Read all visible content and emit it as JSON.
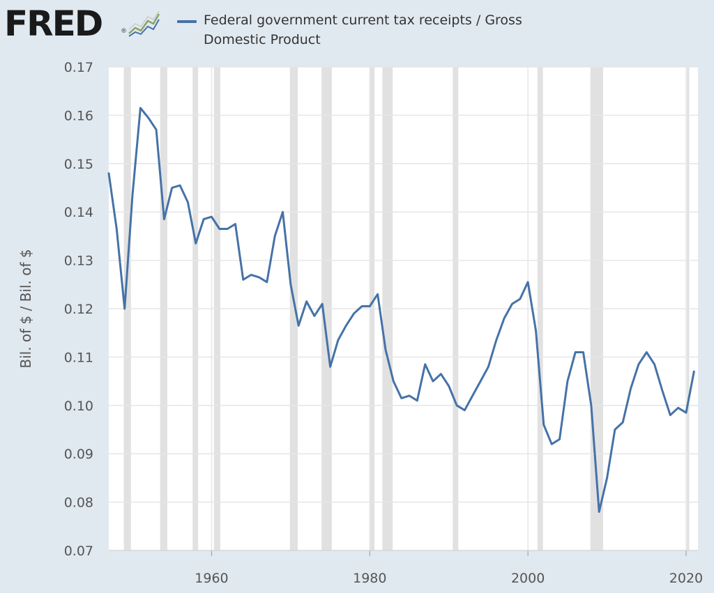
{
  "logo": {
    "text": "FRED",
    "mark": "®",
    "graph_icon": "line-graph-icon"
  },
  "legend": {
    "label": "Federal government current tax receipts / Gross Domestic Product",
    "color": "#4572a7"
  },
  "chart_data": {
    "type": "line",
    "title": "",
    "xlabel": "",
    "ylabel": "Bil. of $ / Bil. of $",
    "xlim": [
      1947,
      2021.5
    ],
    "ylim": [
      0.07,
      0.17
    ],
    "x_ticks": [
      1960,
      1980,
      2000,
      2020
    ],
    "y_ticks": [
      0.07,
      0.08,
      0.09,
      0.1,
      0.11,
      0.12,
      0.13,
      0.14,
      0.15,
      0.16,
      0.17
    ],
    "y_tick_labels": [
      "0.07",
      "0.08",
      "0.09",
      "0.10",
      "0.11",
      "0.12",
      "0.13",
      "0.14",
      "0.15",
      "0.16",
      "0.17"
    ],
    "grid": true,
    "background_color": "#ffffff",
    "grid_color": "#e6e6e6",
    "recession_color": "#e1e1e1",
    "recessions": [
      [
        1948.9,
        1949.8
      ],
      [
        1953.5,
        1954.4
      ],
      [
        1957.6,
        1958.3
      ],
      [
        1960.3,
        1961.1
      ],
      [
        1969.9,
        1970.9
      ],
      [
        1973.9,
        1975.2
      ],
      [
        1980.0,
        1980.6
      ],
      [
        1981.6,
        1982.9
      ],
      [
        1990.5,
        1991.2
      ],
      [
        2001.2,
        2001.9
      ],
      [
        2007.9,
        2009.5
      ],
      [
        2020.1,
        2020.4
      ]
    ],
    "series": [
      {
        "name": "Federal government current tax receipts / Gross Domestic Product",
        "color": "#4572a7",
        "x": [
          1947,
          1948,
          1949,
          1950,
          1951,
          1952,
          1953,
          1954,
          1955,
          1956,
          1957,
          1958,
          1959,
          1960,
          1961,
          1962,
          1963,
          1964,
          1965,
          1966,
          1967,
          1968,
          1969,
          1970,
          1971,
          1972,
          1973,
          1974,
          1975,
          1976,
          1977,
          1978,
          1979,
          1980,
          1981,
          1982,
          1983,
          1984,
          1985,
          1986,
          1987,
          1988,
          1989,
          1990,
          1991,
          1992,
          1993,
          1994,
          1995,
          1996,
          1997,
          1998,
          1999,
          2000,
          2001,
          2002,
          2003,
          2004,
          2005,
          2006,
          2007,
          2008,
          2009,
          2010,
          2011,
          2012,
          2013,
          2014,
          2015,
          2016,
          2017,
          2018,
          2019,
          2020,
          2021
        ],
        "values": [
          0.148,
          0.1365,
          0.12,
          0.1435,
          0.1615,
          0.1595,
          0.157,
          0.1385,
          0.145,
          0.1455,
          0.142,
          0.1335,
          0.1385,
          0.139,
          0.1365,
          0.1365,
          0.1375,
          0.126,
          0.127,
          0.1265,
          0.1255,
          0.135,
          0.14,
          0.125,
          0.1165,
          0.1215,
          0.1185,
          0.121,
          0.108,
          0.1135,
          0.1165,
          0.119,
          0.1205,
          0.1205,
          0.123,
          0.1115,
          0.105,
          0.1015,
          0.102,
          0.101,
          0.1085,
          0.105,
          0.1065,
          0.104,
          0.1,
          0.099,
          0.102,
          0.105,
          0.108,
          0.1135,
          0.118,
          0.121,
          0.122,
          0.1255,
          0.1155,
          0.096,
          0.092,
          0.093,
          0.105,
          0.111,
          0.111,
          0.1,
          0.078,
          0.085,
          0.095,
          0.0965,
          0.1035,
          0.1085,
          0.111,
          0.1085,
          0.103,
          0.098,
          0.0995,
          0.0985,
          0.107
        ]
      }
    ]
  }
}
